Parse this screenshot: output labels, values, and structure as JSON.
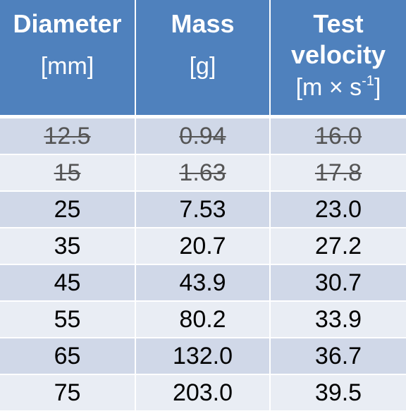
{
  "headers": [
    {
      "name": "Diameter",
      "unit": "[mm]"
    },
    {
      "name": "Mass",
      "unit": "[g]"
    },
    {
      "name_line1": "Test",
      "name_line2": "velocity",
      "unit_main": "[m × s",
      "unit_sup": "-1",
      "unit_close": "]"
    }
  ],
  "rows": [
    {
      "diameter": "12.5",
      "mass": "0.94",
      "velocity": "16.0",
      "struck": true
    },
    {
      "diameter": "15",
      "mass": "1.63",
      "velocity": "17.8",
      "struck": true
    },
    {
      "diameter": "25",
      "mass": "7.53",
      "velocity": "23.0",
      "struck": false
    },
    {
      "diameter": "35",
      "mass": "20.7",
      "velocity": "27.2",
      "struck": false
    },
    {
      "diameter": "45",
      "mass": "43.9",
      "velocity": "30.7",
      "struck": false
    },
    {
      "diameter": "55",
      "mass": "80.2",
      "velocity": "33.9",
      "struck": false
    },
    {
      "diameter": "65",
      "mass": "132.0",
      "velocity": "36.7",
      "struck": false
    },
    {
      "diameter": "75",
      "mass": "203.0",
      "velocity": "39.5",
      "struck": false
    }
  ],
  "colors": {
    "header_bg": "#4f81bd",
    "row_dark": "#d0d8e8",
    "row_light": "#e9edf4"
  }
}
